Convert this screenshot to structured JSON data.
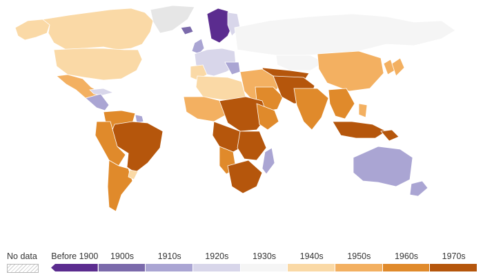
{
  "legend": {
    "no_data_label": "No data",
    "bins": [
      {
        "label": "Before 1900",
        "color": "#5b2c8f"
      },
      {
        "label": "1900s",
        "color": "#7b6aab"
      },
      {
        "label": "1910s",
        "color": "#aaa5d3"
      },
      {
        "label": "1920s",
        "color": "#d8d6ea"
      },
      {
        "label": "1930s",
        "color": "#f5f5f5"
      },
      {
        "label": "1940s",
        "color": "#fad9a6"
      },
      {
        "label": "1950s",
        "color": "#f3b061"
      },
      {
        "label": "1960s",
        "color": "#e08a2b"
      },
      {
        "label": "1970s",
        "color": "#b5560c"
      }
    ]
  },
  "colors": {
    "no_data": "#e6e6e6",
    "border": "#ffffff"
  }
}
